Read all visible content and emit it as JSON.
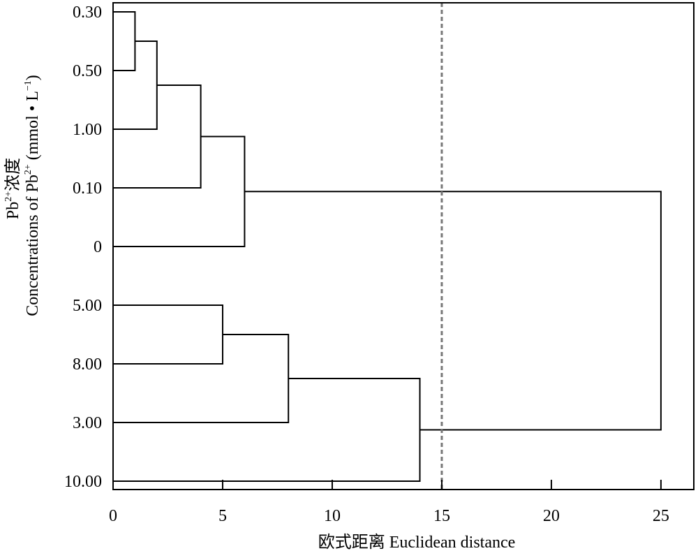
{
  "chart_data": {
    "type": "dendrogram",
    "orientation": "horizontal",
    "leaves": [
      "0.30",
      "0.50",
      "1.00",
      "0.10",
      "0",
      "5.00",
      "8.00",
      "3.00",
      "10.00"
    ],
    "merges": [
      {
        "left": "0.30",
        "right": "0.50",
        "distance": 1
      },
      {
        "left": "0.30+0.50",
        "right": "1.00",
        "distance": 2
      },
      {
        "left": "0.30+0.50+1.00",
        "right": "0.10",
        "distance": 4
      },
      {
        "left": "0.30+0.50+1.00+0.10",
        "right": "0",
        "distance": 6
      },
      {
        "left": "5.00",
        "right": "8.00",
        "distance": 5
      },
      {
        "left": "5.00+8.00",
        "right": "3.00",
        "distance": 8
      },
      {
        "left": "5.00+8.00+3.00",
        "right": "10.00",
        "distance": 14
      },
      {
        "left": "0.30+0.50+1.00+0.10+0",
        "right": "5.00+8.00+3.00+10.00",
        "distance": 25
      }
    ],
    "cut_distance": 15,
    "x_ticks": [
      "0",
      "5",
      "10",
      "15",
      "20",
      "25"
    ],
    "xlim": [
      0,
      26.5
    ],
    "xlabel": "欧式距离 Euclidean distance",
    "ylabel_cn": "浓度",
    "ylabel_en": "Concentrations of",
    "ylabel_ion": "Pb",
    "ylabel_charge": "2+",
    "ylabel_unit_open": "(mmol • L",
    "ylabel_unit_exp": "−1",
    "ylabel_unit_close": ")",
    "grid": false,
    "legend": "none"
  }
}
